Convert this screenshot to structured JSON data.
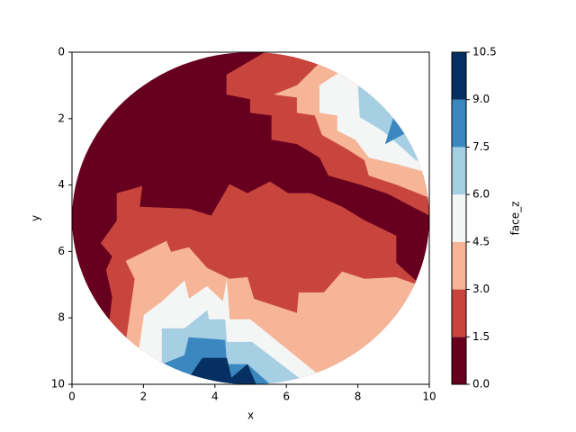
{
  "chart_data": {
    "type": "contourf",
    "xlabel": "x",
    "ylabel": "y",
    "xlim": [
      0,
      10
    ],
    "ylim": [
      10,
      0
    ],
    "xticks": [
      0,
      2,
      4,
      6,
      8,
      10
    ],
    "yticks": [
      0,
      2,
      4,
      6,
      8,
      10
    ],
    "colorbar": {
      "label": "face_z",
      "lim": [
        0,
        10.5
      ],
      "ticks": [
        {
          "value": 0,
          "label": "0.0"
        },
        1.5,
        {
          "value": 3,
          "label": "3.0"
        },
        4.5,
        {
          "value": 6,
          "label": "6.0"
        },
        7.5,
        {
          "value": 9,
          "label": "9.0"
        },
        10.5
      ],
      "colors": [
        "#67001f",
        "#c8453d",
        "#f6b596",
        "#f4f5f5",
        "#a6cfe4",
        "#3b88c0",
        "#053061"
      ]
    },
    "regions": [
      {
        "level": 1.5,
        "points": [
          [
            4.33,
            0.68
          ],
          [
            5.54,
            -0.08
          ],
          [
            10.58,
            -0.49
          ],
          [
            10.58,
            5.07
          ],
          [
            10.03,
            4.93
          ],
          [
            8.82,
            4.25
          ],
          [
            8.06,
            3.98
          ],
          [
            7.18,
            3.71
          ],
          [
            6.93,
            3.17
          ],
          [
            6.3,
            2.76
          ],
          [
            5.59,
            2.63
          ],
          [
            5.59,
            1.9
          ],
          [
            4.99,
            1.82
          ],
          [
            4.99,
            1.41
          ],
          [
            4.33,
            1.27
          ]
        ]
      },
      {
        "level": 1.5,
        "points": [
          [
            1.26,
            4.25
          ],
          [
            1.96,
            4.04
          ],
          [
            1.89,
            4.66
          ],
          [
            3.27,
            4.72
          ],
          [
            3.9,
            4.93
          ],
          [
            4.41,
            3.98
          ],
          [
            4.91,
            4.25
          ],
          [
            5.54,
            3.9
          ],
          [
            6.05,
            4.25
          ],
          [
            6.68,
            4.25
          ],
          [
            7.56,
            4.66
          ],
          [
            8.19,
            5.07
          ],
          [
            9.07,
            5.53
          ],
          [
            9.07,
            6.34
          ],
          [
            9.62,
            6.88
          ],
          [
            10.58,
            7.37
          ],
          [
            10.58,
            10.35
          ],
          [
            1.39,
            10.35
          ],
          [
            1.01,
            8.46
          ],
          [
            1.13,
            7.37
          ],
          [
            0.96,
            6.56
          ],
          [
            1.13,
            6.15
          ],
          [
            0.81,
            5.75
          ],
          [
            1.26,
            5.07
          ]
        ]
      },
      {
        "level": 3,
        "points": [
          [
            5.67,
            1.27
          ],
          [
            6.3,
            1.0
          ],
          [
            6.93,
            0.33
          ],
          [
            10.58,
            -0.49
          ],
          [
            10.58,
            4.53
          ],
          [
            10.03,
            4.39
          ],
          [
            9.07,
            3.98
          ],
          [
            8.31,
            3.71
          ],
          [
            8.19,
            3.25
          ],
          [
            7.68,
            2.9
          ],
          [
            7.0,
            2.49
          ],
          [
            6.8,
            1.9
          ],
          [
            6.3,
            1.82
          ],
          [
            6.3,
            1.36
          ]
        ]
      },
      {
        "level": 3,
        "points": [
          [
            1.51,
            6.29
          ],
          [
            2.64,
            5.69
          ],
          [
            2.77,
            6.02
          ],
          [
            3.27,
            5.88
          ],
          [
            3.78,
            6.5
          ],
          [
            4.41,
            6.83
          ],
          [
            4.91,
            6.78
          ],
          [
            5.09,
            7.43
          ],
          [
            6.3,
            7.86
          ],
          [
            6.35,
            7.24
          ],
          [
            7.05,
            7.24
          ],
          [
            7.56,
            6.61
          ],
          [
            8.19,
            6.83
          ],
          [
            9.07,
            6.78
          ],
          [
            9.62,
            6.99
          ],
          [
            10.58,
            7.43
          ],
          [
            10.58,
            10.35
          ],
          [
            1.76,
            10.35
          ],
          [
            1.51,
            8.73
          ],
          [
            1.76,
            6.83
          ]
        ]
      },
      {
        "level": 4.5,
        "points": [
          [
            6.93,
            1.0
          ],
          [
            7.43,
            0.65
          ],
          [
            8.06,
            0.46
          ],
          [
            10.58,
            0.05
          ],
          [
            10.58,
            3.58
          ],
          [
            9.82,
            3.58
          ],
          [
            9.07,
            3.36
          ],
          [
            8.31,
            3.17
          ],
          [
            7.93,
            2.63
          ],
          [
            7.43,
            2.36
          ],
          [
            7.43,
            1.9
          ],
          [
            6.93,
            1.82
          ]
        ]
      },
      {
        "level": 4.5,
        "points": [
          [
            1.89,
            8.86
          ],
          [
            2.02,
            7.91
          ],
          [
            2.52,
            7.51
          ],
          [
            3.15,
            6.88
          ],
          [
            3.27,
            7.43
          ],
          [
            3.78,
            7.05
          ],
          [
            4.23,
            7.51
          ],
          [
            4.33,
            6.88
          ],
          [
            4.41,
            8.05
          ],
          [
            4.99,
            8.05
          ],
          [
            6.85,
            9.67
          ],
          [
            6.55,
            10.35
          ],
          [
            1.76,
            10.35
          ]
        ]
      },
      {
        "level": 6,
        "points": [
          [
            8.01,
            1.0
          ],
          [
            8.56,
            0.87
          ],
          [
            10.58,
            0.05
          ],
          [
            10.58,
            3.36
          ],
          [
            9.62,
            3.25
          ],
          [
            9.27,
            2.9
          ],
          [
            8.69,
            2.36
          ],
          [
            8.06,
            1.95
          ]
        ]
      },
      {
        "level": 6,
        "points": [
          [
            2.52,
            9.27
          ],
          [
            2.52,
            8.32
          ],
          [
            3.15,
            8.32
          ],
          [
            3.78,
            7.78
          ],
          [
            3.83,
            8.05
          ],
          [
            4.28,
            8.05
          ],
          [
            4.33,
            8.73
          ],
          [
            5.04,
            8.73
          ],
          [
            6.35,
            9.81
          ],
          [
            6.05,
            10.35
          ],
          [
            2.27,
            10.35
          ]
        ]
      },
      {
        "level": 7.5,
        "points": [
          [
            8.77,
            2.76
          ],
          [
            9.02,
            1.9
          ],
          [
            9.32,
            2.44
          ]
        ]
      },
      {
        "level": 7.5,
        "points": [
          [
            2.52,
            9.4
          ],
          [
            3.15,
            9.13
          ],
          [
            3.27,
            8.59
          ],
          [
            4.28,
            8.67
          ],
          [
            4.33,
            9.4
          ],
          [
            4.91,
            9.4
          ],
          [
            5.49,
            9.95
          ],
          [
            5.54,
            10.35
          ],
          [
            2.52,
            10.35
          ]
        ]
      },
      {
        "level": 9,
        "points": [
          [
            3.27,
            9.81
          ],
          [
            3.65,
            9.21
          ],
          [
            4.33,
            9.21
          ],
          [
            4.46,
            9.81
          ],
          [
            4.91,
            9.4
          ],
          [
            5.29,
            10.35
          ],
          [
            3.4,
            10.35
          ]
        ]
      }
    ]
  }
}
